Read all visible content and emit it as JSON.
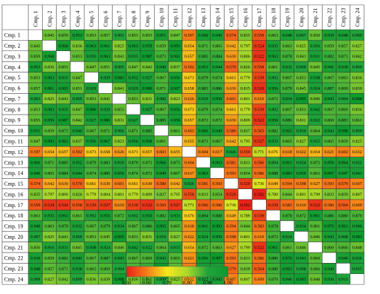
{
  "chart_data": {
    "type": "heatmap",
    "labels": [
      "Cmp. 1",
      "Cmp. 2",
      "Cmp. 3",
      "Cmp. 4",
      "Cmp. 5",
      "Cmp. 6",
      "Cmp. 7",
      "Cmp. 8",
      "Cmp. 9",
      "Cmp. 10",
      "Cmp. 11",
      "Cmp. 12",
      "Cmp. 13",
      "Cmp. 14",
      "Cmp. 15",
      "Cmp. 16",
      "Cmp. 17",
      "Cmp. 18",
      "Cmp. 19",
      "Cmp. 20",
      "Cmp. 21",
      "Cmp. 22",
      "Cmp. 23",
      "Cmp. 24"
    ],
    "values": [
      [
        null,
        0.845,
        0.859,
        0.953,
        0.853,
        0.857,
        0.903,
        0.853,
        0.855,
        0.951,
        0.847,
        0.597,
        0.96,
        0.946,
        0.574,
        0.835,
        0.559,
        0.863,
        0.948,
        0.907,
        0.85,
        0.939,
        0.948,
        0.909
      ],
      [
        0.845,
        null,
        0.968,
        0.836,
        0.963,
        0.961,
        0.825,
        0.963,
        0.959,
        0.859,
        0.993,
        0.654,
        0.871,
        0.865,
        0.642,
        0.797,
        0.524,
        0.935,
        0.863,
        0.825,
        0.916,
        0.859,
        0.857,
        0.827
      ],
      [
        0.859,
        0.968,
        null,
        0.853,
        0.935,
        0.963,
        0.843,
        0.935,
        0.987,
        0.873,
        0.963,
        0.657,
        0.885,
        0.884,
        0.63,
        0.806,
        0.522,
        0.963,
        0.878,
        0.843,
        0.931,
        0.882,
        0.871,
        0.842
      ],
      [
        0.953,
        0.836,
        0.853,
        null,
        0.847,
        0.851,
        0.905,
        0.847,
        0.842,
        0.94,
        0.837,
        0.592,
        0.953,
        0.944,
        0.57,
        0.826,
        0.558,
        0.861,
        0.932,
        0.909,
        0.845,
        0.941,
        0.938,
        0.899
      ],
      [
        0.853,
        0.963,
        0.935,
        0.847,
        null,
        0.929,
        0.983,
        0.952,
        0.927,
        0.867,
        0.956,
        0.673,
        0.879,
        0.874,
        0.661,
        0.779,
        0.539,
        0.902,
        0.867,
        0.853,
        0.938,
        0.867,
        0.863,
        0.836
      ],
      [
        0.857,
        0.961,
        0.963,
        0.851,
        0.929,
        null,
        0.841,
        0.929,
        0.98,
        0.871,
        0.967,
        0.658,
        0.883,
        0.886,
        0.63,
        0.815,
        0.52,
        0.956,
        0.879,
        0.845,
        0.924,
        0.887,
        0.869,
        0.839
      ],
      [
        0.903,
        0.825,
        0.843,
        0.905,
        0.853,
        0.841,
        null,
        0.853,
        0.831,
        0.906,
        0.823,
        0.626,
        0.919,
        0.95,
        0.601,
        0.801,
        0.61,
        0.872,
        0.934,
        0.995,
        0.846,
        0.943,
        0.904,
        0.988
      ],
      [
        0.853,
        0.963,
        0.935,
        0.847,
        0.996,
        0.929,
        0.853,
        null,
        0.927,
        0.867,
        0.956,
        0.673,
        0.879,
        0.874,
        0.661,
        0.779,
        0.539,
        0.902,
        0.867,
        0.853,
        0.942,
        0.867,
        0.869,
        0.836
      ],
      [
        0.855,
        0.959,
        0.987,
        0.842,
        0.927,
        0.98,
        0.831,
        0.927,
        null,
        0.885,
        0.958,
        0.657,
        0.872,
        0.872,
        0.63,
        0.809,
        0.522,
        0.95,
        0.886,
        0.831,
        0.922,
        0.869,
        0.883,
        0.861
      ],
      [
        0.951,
        0.859,
        0.873,
        0.94,
        0.867,
        0.871,
        0.906,
        0.871,
        0.885,
        null,
        0.861,
        0.603,
        0.966,
        0.949,
        0.58,
        0.837,
        0.565,
        0.882,
        0.965,
        0.91,
        0.864,
        0.943,
        0.998,
        0.899
      ],
      [
        0.847,
        0.993,
        0.963,
        0.837,
        0.956,
        0.967,
        0.823,
        0.956,
        0.958,
        0.861,
        null,
        0.655,
        0.873,
        0.867,
        0.642,
        0.795,
        0.527,
        0.933,
        0.865,
        0.827,
        0.915,
        0.865,
        0.859,
        0.825
      ],
      [
        0.597,
        0.654,
        0.657,
        0.592,
        0.673,
        0.658,
        0.626,
        0.673,
        0.657,
        0.603,
        0.655,
        null,
        0.604,
        0.617,
        0.926,
        0.55,
        0.771,
        0.676,
        0.618,
        0.622,
        0.654,
        0.621,
        0.602,
        0.632
      ],
      [
        0.96,
        0.871,
        0.885,
        0.952,
        0.879,
        0.883,
        0.919,
        0.879,
        0.872,
        0.966,
        0.873,
        0.604,
        null,
        0.963,
        0.581,
        0.833,
        0.566,
        0.894,
        0.961,
        0.924,
        0.872,
        0.956,
        0.964,
        0.922
      ],
      [
        0.946,
        0.865,
        0.884,
        0.944,
        0.874,
        0.886,
        0.95,
        0.874,
        0.872,
        0.949,
        0.867,
        0.617,
        0.963,
        null,
        0.593,
        0.854,
        0.586,
        0.888,
        0.983,
        0.95,
        0.863,
        0.997,
        0.947,
        0.943
      ],
      [
        0.574,
        0.642,
        0.63,
        0.57,
        0.661,
        0.63,
        0.601,
        0.661,
        0.63,
        0.58,
        0.642,
        0.926,
        0.581,
        0.593,
        null,
        0.529,
        0.736,
        0.649,
        0.594,
        0.598,
        0.627,
        0.593,
        0.579,
        0.607
      ],
      [
        0.835,
        0.797,
        0.806,
        0.826,
        0.779,
        0.804,
        0.801,
        0.779,
        0.809,
        0.837,
        0.795,
        0.55,
        0.833,
        0.854,
        0.529,
        null,
        0.502,
        0.789,
        0.844,
        0.801,
        0.799,
        0.833,
        0.839,
        0.807
      ],
      [
        0.559,
        0.524,
        0.524,
        0.558,
        0.539,
        0.527,
        0.61,
        0.539,
        0.522,
        0.565,
        0.527,
        0.771,
        0.566,
        0.586,
        0.736,
        0.502,
        null,
        0.539,
        0.583,
        0.61,
        0.522,
        0.586,
        0.564,
        0.609
      ],
      [
        0.863,
        0.935,
        0.963,
        0.861,
        0.902,
        0.956,
        0.872,
        0.902,
        0.95,
        0.882,
        0.933,
        0.676,
        0.894,
        0.888,
        0.649,
        0.789,
        0.539,
        null,
        0.878,
        0.872,
        0.961,
        0.886,
        0.88,
        0.87
      ],
      [
        0.948,
        0.863,
        0.878,
        0.932,
        0.867,
        0.879,
        0.934,
        0.867,
        0.886,
        0.965,
        0.865,
        0.618,
        0.961,
        0.983,
        0.594,
        0.844,
        0.583,
        0.878,
        null,
        0.934,
        0.861,
        0.976,
        0.963,
        0.946
      ],
      [
        0.907,
        0.825,
        0.843,
        0.909,
        0.853,
        0.845,
        0.995,
        0.853,
        0.831,
        0.91,
        0.827,
        0.622,
        0.924,
        0.95,
        0.598,
        0.801,
        0.61,
        0.872,
        0.934,
        null,
        0.846,
        0.943,
        0.908,
        0.983
      ],
      [
        0.85,
        0.916,
        0.931,
        0.845,
        0.938,
        0.924,
        0.846,
        0.942,
        0.922,
        0.864,
        0.915,
        0.654,
        0.872,
        0.863,
        0.627,
        0.799,
        0.522,
        0.961,
        0.861,
        0.846,
        null,
        0.86,
        0.866,
        0.848
      ],
      [
        0.939,
        0.859,
        0.882,
        0.941,
        0.867,
        0.887,
        0.943,
        0.867,
        0.869,
        0.943,
        0.865,
        0.621,
        0.956,
        0.997,
        0.593,
        0.833,
        0.586,
        0.886,
        0.976,
        0.943,
        0.86,
        null,
        0.94,
        0.936
      ],
      [
        0.948,
        0.857,
        0.871,
        0.938,
        0.865,
        0.869,
        0.904,
        0.869,
        0.883,
        0.998,
        0.859,
        0.602,
        0.964,
        0.947,
        0.579,
        0.839,
        0.564,
        0.88,
        0.963,
        0.908,
        0.866,
        0.94,
        null,
        0.915
      ],
      [
        0.909,
        0.827,
        0.842,
        0.899,
        0.836,
        0.839,
        0.988,
        0.836,
        0.861,
        0.899,
        0.825,
        0.632,
        0.922,
        0.943,
        0.607,
        0.807,
        0.609,
        0.87,
        0.946,
        0.983,
        0.848,
        0.936,
        0.915,
        null
      ]
    ],
    "colorbar": {
      "min": 0.5,
      "max": 1.0,
      "ticks": [
        "0.50",
        "0.60",
        "0.70",
        "0.80",
        "0.90",
        "1.00"
      ],
      "tick_values": [
        0.5,
        0.6,
        0.7,
        0.8,
        0.9,
        1.0
      ],
      "colors": [
        "#e8201a",
        "#f47c18",
        "#f7e81c",
        "#a9d82a",
        "#21a33b",
        "#0c9a2c"
      ]
    }
  }
}
